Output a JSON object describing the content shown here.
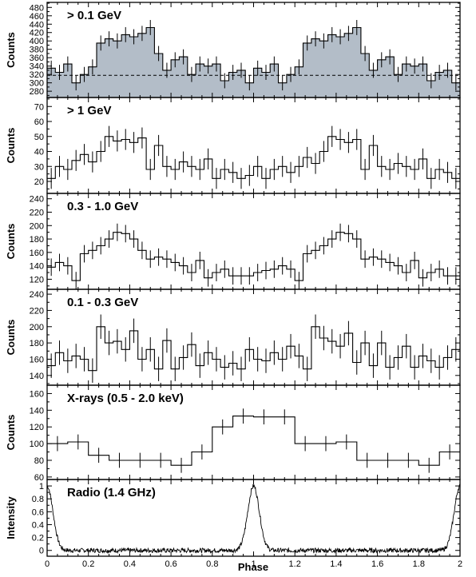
{
  "figure": {
    "xlabel": "Phase"
  },
  "chart_data": [
    {
      "type": "histogram",
      "label": "> 0.1 GeV",
      "ylabel": "Counts",
      "ylim": [
        265,
        492
      ],
      "yticks": [
        280,
        300,
        320,
        340,
        360,
        380,
        400,
        420,
        440,
        460,
        480
      ],
      "filled": true,
      "fill_color": "#b3bdc8",
      "reference_line": 318,
      "err": 18,
      "bins": 50,
      "xlim": [
        0,
        2
      ],
      "values": [
        335,
        325,
        345,
        300,
        320,
        338,
        395,
        405,
        400,
        415,
        410,
        418,
        432,
        370,
        330,
        355,
        362,
        320,
        345,
        340,
        345,
        305,
        325,
        330,
        300,
        335,
        325,
        345,
        300,
        320,
        338,
        395,
        405,
        400,
        415,
        410,
        418,
        432,
        370,
        330,
        355,
        362,
        320,
        345,
        340,
        345,
        305,
        325,
        330,
        300
      ]
    },
    {
      "type": "histogram",
      "label": "> 1 GeV",
      "ylabel": "Counts",
      "ylim": [
        12,
        76
      ],
      "yticks": [
        20,
        30,
        40,
        50,
        60,
        70
      ],
      "err": 7,
      "bins": 50,
      "xlim": [
        0,
        2
      ],
      "values": [
        22,
        30,
        28,
        34,
        38,
        33,
        40,
        50,
        47,
        48,
        46,
        49,
        28,
        44,
        30,
        28,
        33,
        30,
        28,
        35,
        22,
        28,
        26,
        22,
        24,
        30,
        22,
        28,
        30,
        26,
        30,
        36,
        32,
        40,
        50,
        48,
        46,
        48,
        28,
        44,
        30,
        28,
        32,
        30,
        28,
        35,
        22,
        28,
        26,
        22
      ]
    },
    {
      "type": "histogram",
      "label": "0.3 - 1.0 GeV",
      "ylabel": "Counts",
      "ylim": [
        105,
        248
      ],
      "yticks": [
        120,
        140,
        160,
        180,
        200,
        220,
        240
      ],
      "err": 13,
      "bins": 50,
      "xlim": [
        0,
        2
      ],
      "values": [
        138,
        145,
        140,
        118,
        158,
        163,
        170,
        180,
        190,
        188,
        180,
        163,
        150,
        153,
        150,
        145,
        140,
        130,
        148,
        122,
        130,
        135,
        125,
        125,
        125,
        130,
        133,
        135,
        140,
        135,
        118,
        158,
        163,
        170,
        180,
        190,
        188,
        180,
        150,
        153,
        150,
        145,
        140,
        130,
        148,
        122,
        130,
        135,
        125,
        125
      ]
    },
    {
      "type": "histogram",
      "label": "0.1 - 0.3 GeV",
      "ylabel": "Counts",
      "ylim": [
        128,
        246
      ],
      "yticks": [
        140,
        160,
        180,
        200,
        220,
        240
      ],
      "err": 15,
      "bins": 50,
      "xlim": [
        0,
        2
      ],
      "values": [
        152,
        168,
        158,
        164,
        160,
        146,
        200,
        180,
        182,
        172,
        195,
        160,
        172,
        148,
        183,
        148,
        162,
        178,
        152,
        168,
        160,
        150,
        155,
        148,
        172,
        160,
        158,
        168,
        160,
        176,
        164,
        148,
        200,
        186,
        182,
        176,
        192,
        156,
        180,
        152,
        180,
        150,
        162,
        176,
        150,
        164,
        158,
        150,
        162,
        172
      ]
    },
    {
      "type": "histogram",
      "label": "X-rays (0.5 - 2.0 keV)",
      "ylabel": "Counts",
      "ylim": [
        57,
        170
      ],
      "yticks": [
        60,
        80,
        100,
        120,
        140,
        160
      ],
      "err": 9,
      "bins": 20,
      "xlim": [
        0,
        2
      ],
      "values": [
        100,
        102,
        86,
        80,
        80,
        80,
        74,
        90,
        120,
        133,
        132,
        132,
        100,
        100,
        102,
        80,
        80,
        80,
        74,
        90
      ]
    },
    {
      "type": "line",
      "label": "Radio (1.4 GHz)",
      "ylabel": "Intensity",
      "ylim": [
        -0.09,
        1.1
      ],
      "yticks": [
        0,
        0.2,
        0.4,
        0.6,
        0.8,
        1
      ],
      "peak_x": [
        0,
        1,
        2
      ],
      "peak_value": 1.0,
      "xlim": [
        0,
        2
      ]
    }
  ]
}
